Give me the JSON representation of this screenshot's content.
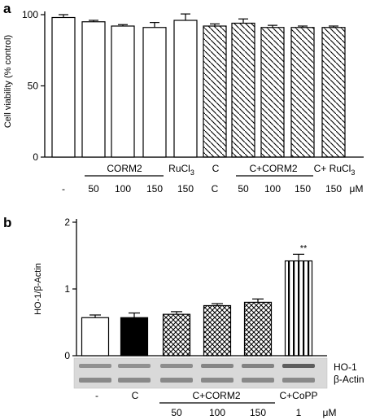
{
  "chart_data": [
    {
      "panel": "a",
      "type": "bar",
      "ylabel": "Cell viability (% control)",
      "ylim": [
        0,
        100
      ],
      "yticks": [
        "0",
        "50",
        "100"
      ],
      "bars": [
        {
          "label": "-",
          "value": 98,
          "error": 2,
          "pattern": "open"
        },
        {
          "label": "50",
          "value": 95,
          "error": 1,
          "pattern": "open"
        },
        {
          "label": "100",
          "value": 92,
          "error": 1,
          "pattern": "open"
        },
        {
          "label": "150",
          "value": 91,
          "error": 3.5,
          "pattern": "open"
        },
        {
          "label": "150",
          "value": 96,
          "error": 4.5,
          "pattern": "open"
        },
        {
          "label": "C",
          "value": 92,
          "error": 1.5,
          "pattern": "hatch"
        },
        {
          "label": "50",
          "value": 94,
          "error": 3,
          "pattern": "hatch"
        },
        {
          "label": "100",
          "value": 91,
          "error": 1.5,
          "pattern": "hatch"
        },
        {
          "label": "150",
          "value": 91,
          "error": 1,
          "pattern": "hatch"
        },
        {
          "label": "150",
          "value": 91,
          "error": 1,
          "pattern": "hatch"
        }
      ],
      "groups": [
        {
          "label": "CORM2"
        },
        {
          "label": "RuCl",
          "sub": "3"
        },
        {
          "label": "C+CORM2"
        },
        {
          "label": "C+ RuCl",
          "sub": "3"
        }
      ],
      "unit": "μM"
    },
    {
      "panel": "b",
      "type": "bar",
      "ylabel": "HO-1/β-Actin",
      "ylim": [
        0,
        2
      ],
      "yticks": [
        "0",
        "1",
        "2"
      ],
      "bars": [
        {
          "label": "-",
          "value": 0.57,
          "error": 0.04,
          "pattern": "open"
        },
        {
          "label": "C",
          "value": 0.57,
          "error": 0.07,
          "pattern": "solid"
        },
        {
          "label": "50",
          "value": 0.62,
          "error": 0.04,
          "pattern": "crosshatch"
        },
        {
          "label": "100",
          "value": 0.75,
          "error": 0.03,
          "pattern": "crosshatch"
        },
        {
          "label": "150",
          "value": 0.8,
          "error": 0.05,
          "pattern": "crosshatch"
        },
        {
          "label": "1",
          "value": 1.42,
          "error": 0.1,
          "pattern": "vertical"
        }
      ],
      "annotation": "**",
      "groups": [
        {
          "label": "C+CORM2"
        },
        {
          "label": "C+CoPP"
        }
      ],
      "unit": "μM",
      "blot_labels": [
        "HO-1",
        "β-Actin"
      ]
    }
  ]
}
